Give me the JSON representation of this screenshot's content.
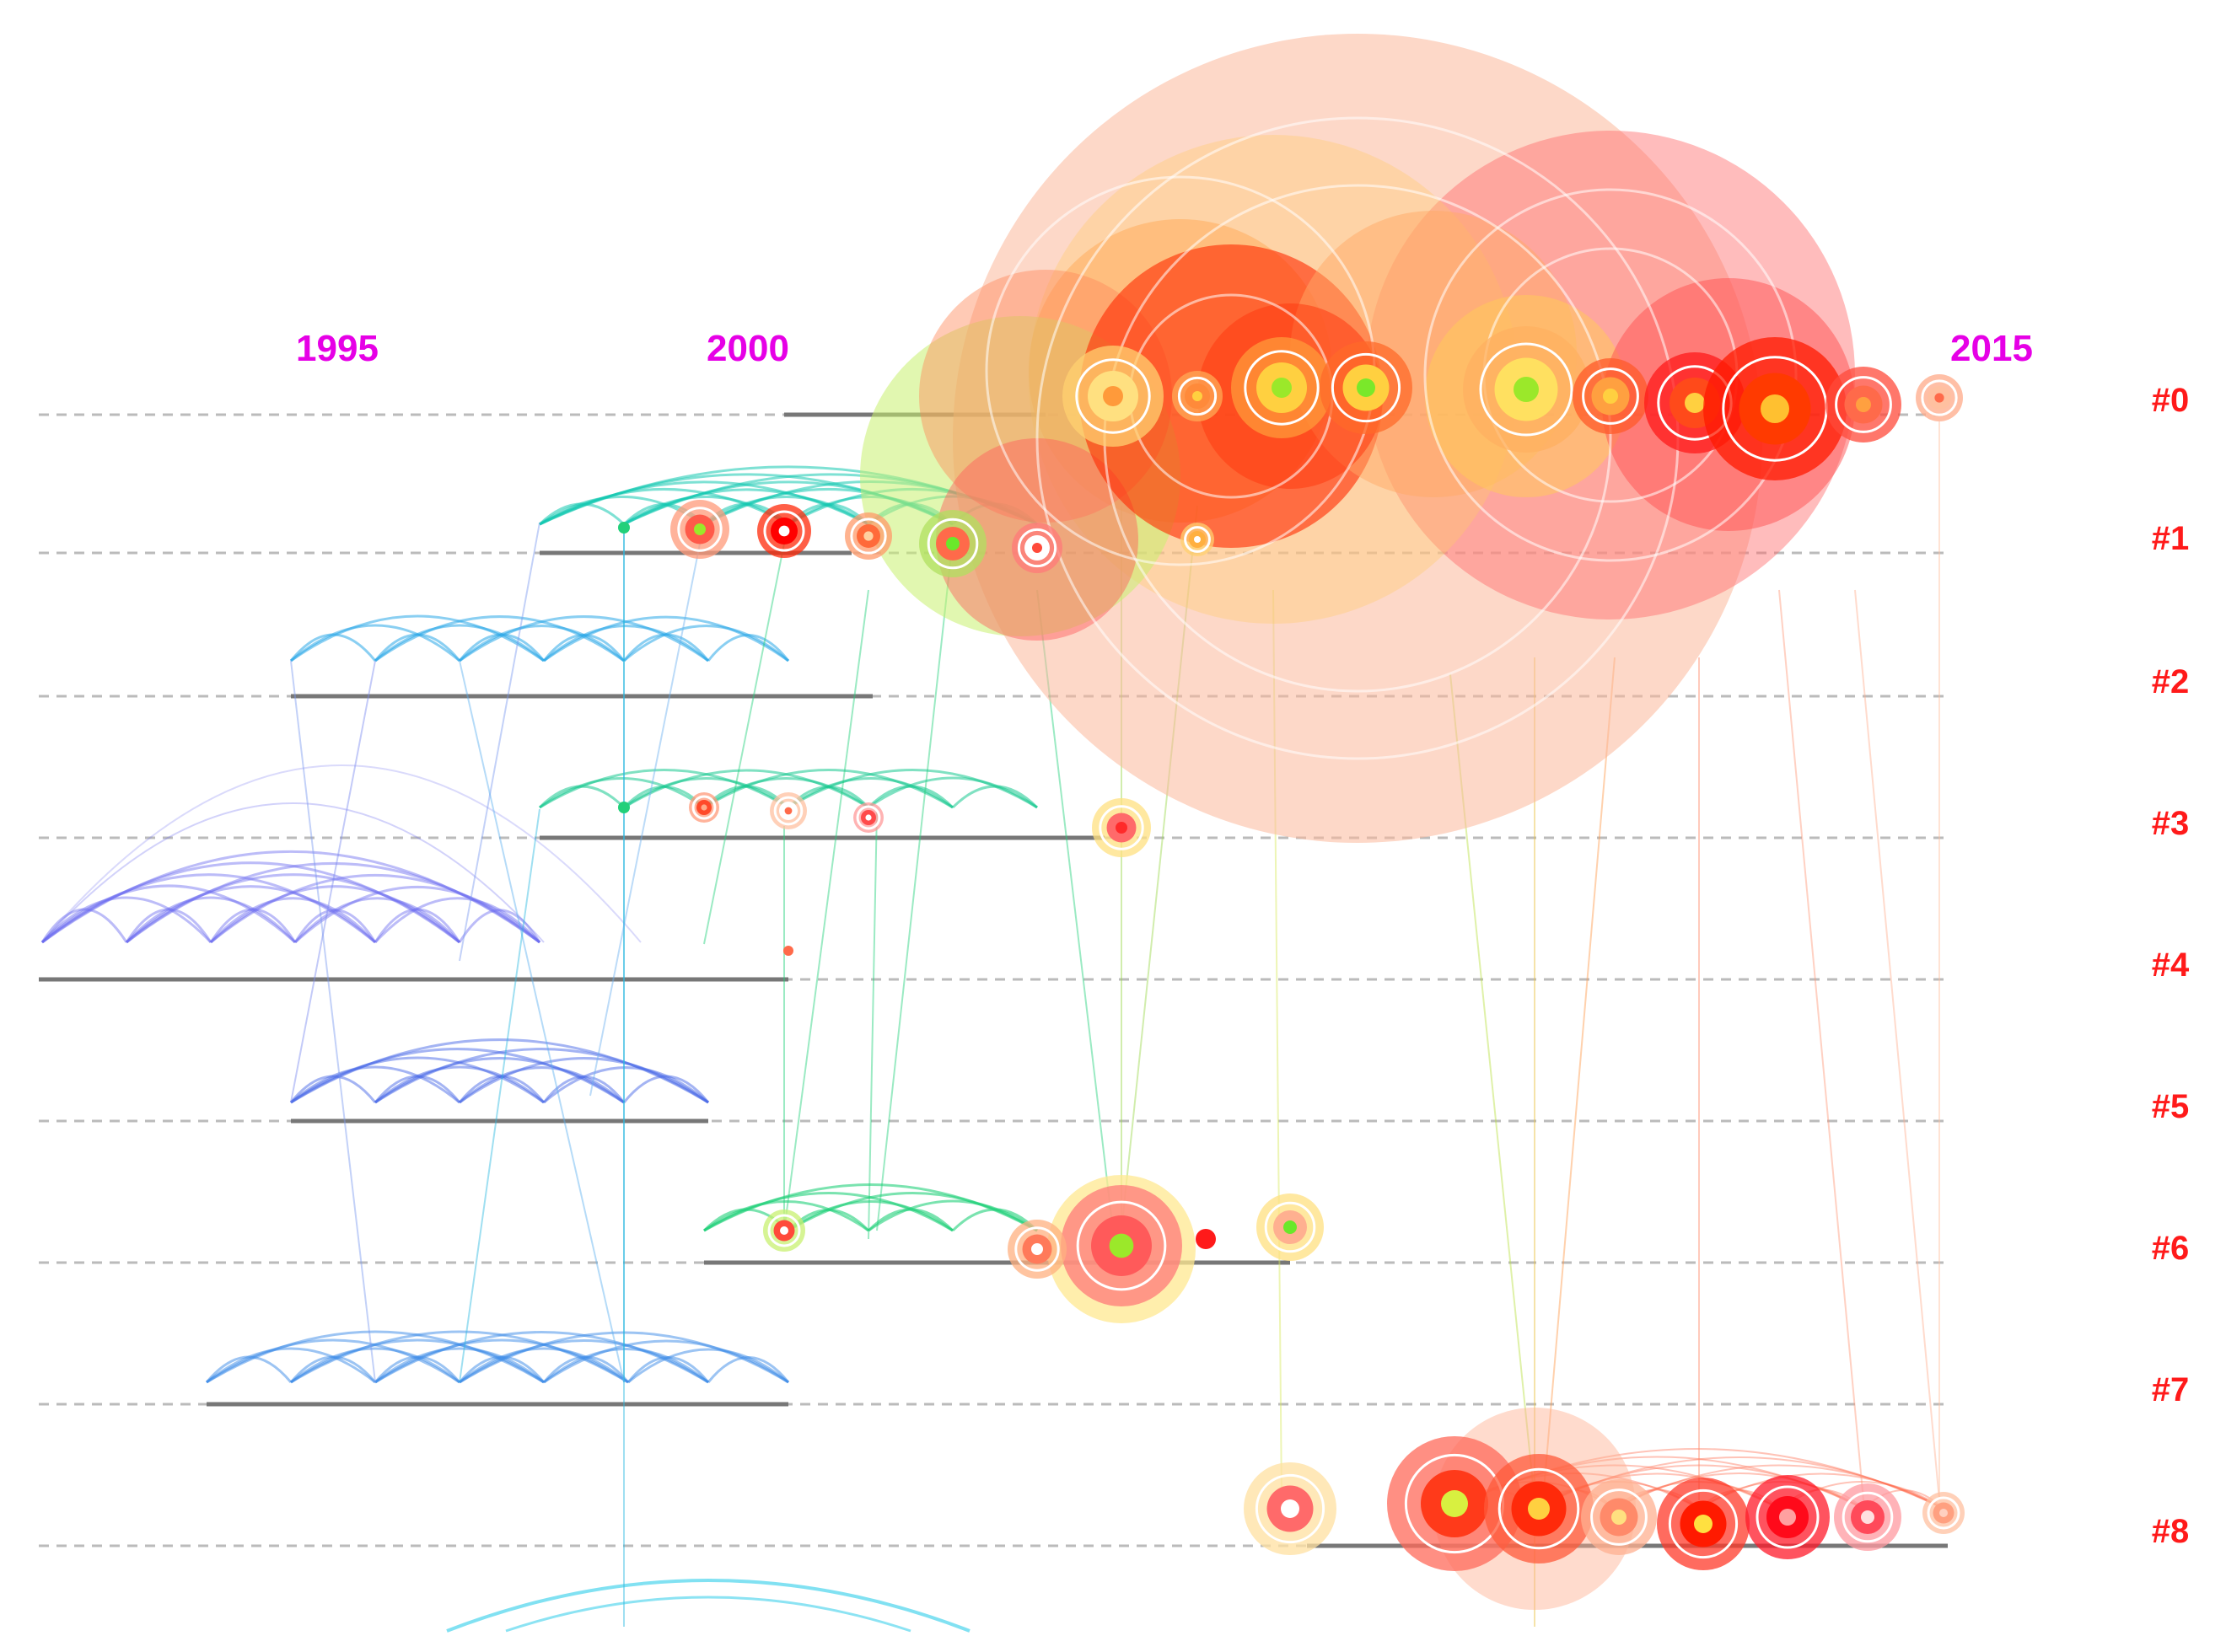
{
  "timeline": {
    "year_labels": [
      "1995",
      "2000",
      "2015"
    ],
    "year_label_color": "#e600e6",
    "cluster_labels": [
      "#0",
      "#1",
      "#2",
      "#3",
      "#4",
      "#5",
      "#6",
      "#7",
      "#8"
    ],
    "cluster_label_color": "#ff1a1a"
  },
  "colors": {
    "dash_line": "#bbbbbb",
    "cluster_span": "#777777",
    "link_old": "#6a6af0",
    "link_mid": "#2aa8e8",
    "link_new": "#22d07a",
    "node_hot": "#ff1a00",
    "node_warm": "#ff8a3c",
    "node_glow": "#ffd84a",
    "node_green": "#9be82a"
  }
}
